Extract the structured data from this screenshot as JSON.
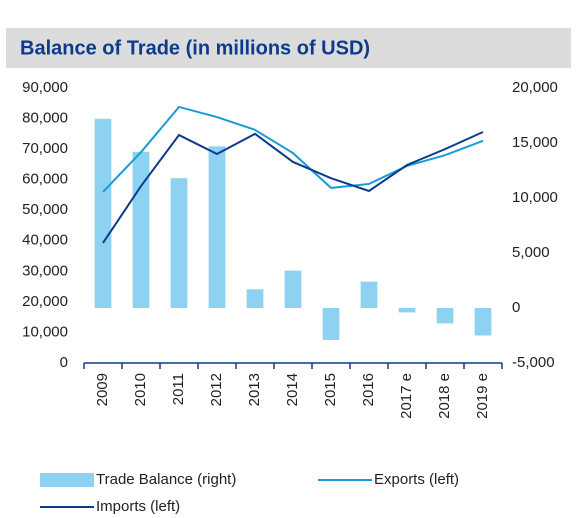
{
  "chart_data": {
    "type": "combo",
    "title": "Balance of Trade (in millions of USD)",
    "categories": [
      "2009",
      "2010",
      "2011",
      "2012",
      "2013",
      "2014",
      "2015",
      "2016",
      "2017 e",
      "2018 e",
      "2019 e"
    ],
    "series": [
      {
        "name": "Trade Balance (right)",
        "type": "bar",
        "axis": "y2",
        "color": "#8ed2f2",
        "values": [
          17200,
          14200,
          11800,
          14700,
          1700,
          3400,
          -2900,
          2400,
          -400,
          -1400,
          -2500
        ]
      },
      {
        "name": "Exports (left)",
        "type": "line",
        "color": "#1a9ad6",
        "values": [
          56000,
          69000,
          83800,
          80500,
          76300,
          68700,
          57300,
          58600,
          64500,
          68000,
          72700
        ]
      },
      {
        "name": "Imports (left)",
        "type": "line",
        "color": "#0d3b8c",
        "values": [
          39300,
          57900,
          74600,
          68400,
          75000,
          65800,
          60500,
          56300,
          64800,
          70000,
          75600
        ]
      }
    ],
    "ylim": [
      0,
      90000
    ],
    "yticks": [
      0,
      {
        "value": 10000,
        "label": "10,000"
      },
      {
        "value": 20000,
        "label": "20,000"
      },
      {
        "value": 30000,
        "label": "30,000"
      },
      {
        "value": 40000,
        "label": "40,000"
      },
      {
        "value": 50000,
        "label": "50,000"
      },
      {
        "value": 60000,
        "label": "60,000"
      },
      {
        "value": 70000,
        "label": "70,000"
      },
      {
        "value": 80000,
        "label": "80,000"
      },
      {
        "value": 90000,
        "label": "90,000"
      }
    ],
    "y2lim": [
      -5000,
      20000
    ],
    "y2ticks": [
      {
        "value": -5000,
        "label": "-5,000"
      },
      0,
      {
        "value": 5000,
        "label": "5,000"
      },
      {
        "value": 10000,
        "label": "10,000"
      },
      {
        "value": 15000,
        "label": "15,000"
      },
      {
        "value": 20000,
        "label": "20,000"
      }
    ],
    "grid": false,
    "legend": "bottom"
  }
}
